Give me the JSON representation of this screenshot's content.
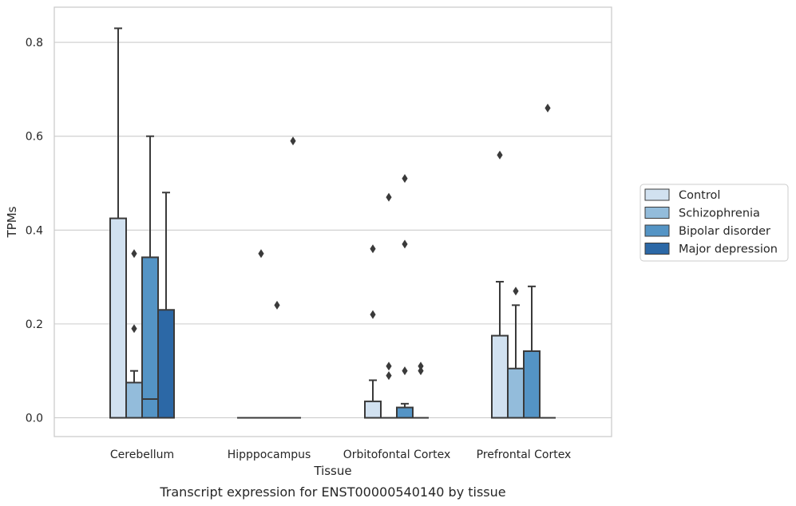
{
  "caption": "Transcript expression for ENST00000540140 by tissue",
  "chart_data": {
    "type": "box",
    "title": "",
    "xlabel": "Tissue",
    "ylabel": "TPMs",
    "ylim": [
      -0.04,
      0.875
    ],
    "yticks": [
      "0.0",
      "0.2",
      "0.4",
      "0.6",
      "0.8"
    ],
    "ytick_values": [
      0.0,
      0.2,
      0.4,
      0.6,
      0.8
    ],
    "grid": "horizontal",
    "legend_position": "right",
    "categories": [
      "Cerebellum",
      "Hipppocampus",
      "Orbitofontal Cortex",
      "Prefrontal Cortex"
    ],
    "series": [
      {
        "name": "Control",
        "color": "#d1e1f0",
        "boxes": [
          {
            "q1": 0.0,
            "median": 0.0,
            "q3": 0.425,
            "whisker_low": 0.0,
            "whisker_high": 0.83,
            "outliers": []
          },
          {
            "q1": 0.0,
            "median": 0.0,
            "q3": 0.0,
            "whisker_low": 0.0,
            "whisker_high": 0.0,
            "outliers": []
          },
          {
            "q1": 0.0,
            "median": 0.0,
            "q3": 0.035,
            "whisker_low": 0.0,
            "whisker_high": 0.08,
            "outliers": [
              0.22,
              0.36
            ]
          },
          {
            "q1": 0.0,
            "median": 0.0,
            "q3": 0.175,
            "whisker_low": 0.0,
            "whisker_high": 0.29,
            "outliers": [
              0.56
            ]
          }
        ]
      },
      {
        "name": "Schizophrenia",
        "color": "#93bcdb",
        "boxes": [
          {
            "q1": 0.0,
            "median": 0.0,
            "q3": 0.075,
            "whisker_low": 0.0,
            "whisker_high": 0.1,
            "outliers": [
              0.19,
              0.35
            ]
          },
          {
            "q1": 0.0,
            "median": 0.0,
            "q3": 0.0,
            "whisker_low": 0.0,
            "whisker_high": 0.0,
            "outliers": [
              0.35
            ]
          },
          {
            "q1": 0.0,
            "median": 0.0,
            "q3": 0.0,
            "whisker_low": 0.0,
            "whisker_high": 0.0,
            "outliers": [
              0.09,
              0.11,
              0.47
            ]
          },
          {
            "q1": 0.0,
            "median": 0.0,
            "q3": 0.105,
            "whisker_low": 0.0,
            "whisker_high": 0.24,
            "outliers": [
              0.27
            ]
          }
        ]
      },
      {
        "name": "Bipolar disorder",
        "color": "#5494c5",
        "boxes": [
          {
            "q1": 0.0,
            "median": 0.04,
            "q3": 0.342,
            "whisker_low": 0.0,
            "whisker_high": 0.6,
            "outliers": []
          },
          {
            "q1": 0.0,
            "median": 0.0,
            "q3": 0.0,
            "whisker_low": 0.0,
            "whisker_high": 0.0,
            "outliers": [
              0.24
            ]
          },
          {
            "q1": 0.0,
            "median": 0.0,
            "q3": 0.022,
            "whisker_low": 0.0,
            "whisker_high": 0.03,
            "outliers": [
              0.1,
              0.37,
              0.51
            ]
          },
          {
            "q1": 0.0,
            "median": 0.0,
            "q3": 0.142,
            "whisker_low": 0.0,
            "whisker_high": 0.28,
            "outliers": []
          }
        ]
      },
      {
        "name": "Major depression",
        "color": "#2c68a6",
        "boxes": [
          {
            "q1": 0.0,
            "median": 0.0,
            "q3": 0.23,
            "whisker_low": 0.0,
            "whisker_high": 0.48,
            "outliers": []
          },
          {
            "q1": 0.0,
            "median": 0.0,
            "q3": 0.0,
            "whisker_low": 0.0,
            "whisker_high": 0.0,
            "outliers": [
              0.59
            ]
          },
          {
            "q1": 0.0,
            "median": 0.0,
            "q3": 0.0,
            "whisker_low": 0.0,
            "whisker_high": 0.0,
            "outliers": [
              0.1,
              0.11
            ]
          },
          {
            "q1": 0.0,
            "median": 0.0,
            "q3": 0.0,
            "whisker_low": 0.0,
            "whisker_high": 0.0,
            "outliers": [
              0.66
            ]
          }
        ]
      }
    ]
  }
}
